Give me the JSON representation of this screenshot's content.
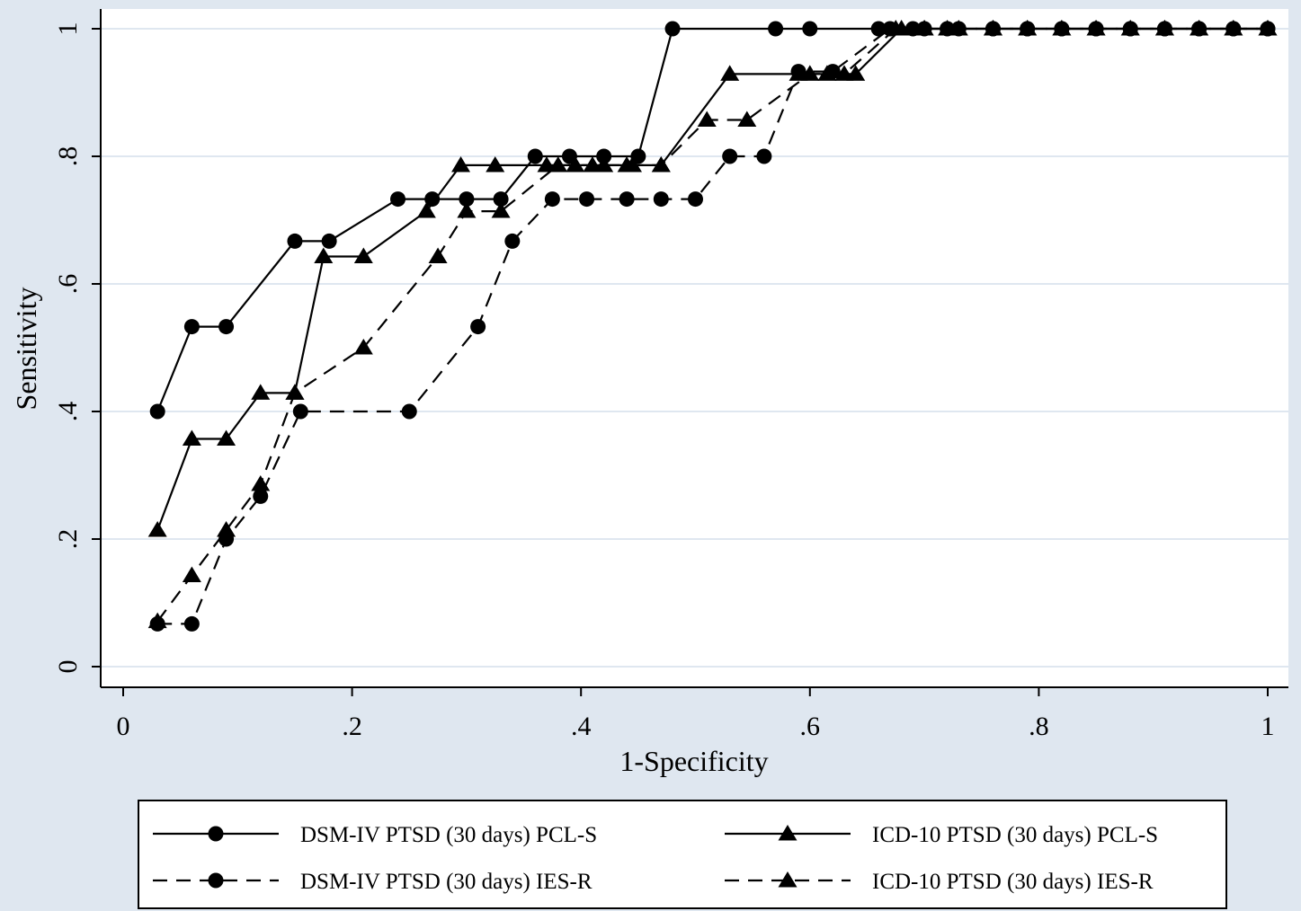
{
  "chart_data": {
    "type": "line",
    "title": "",
    "xlabel": "1-Specificity",
    "ylabel": "Sensitivity",
    "xlim": [
      0,
      1
    ],
    "ylim": [
      0,
      1
    ],
    "x_ticks": [
      {
        "value": 0,
        "label": "0"
      },
      {
        "value": 0.2,
        "label": ".2"
      },
      {
        "value": 0.4,
        "label": ".4"
      },
      {
        "value": 0.6,
        "label": ".6"
      },
      {
        "value": 0.8,
        "label": ".8"
      },
      {
        "value": 1,
        "label": "1"
      }
    ],
    "y_ticks": [
      {
        "value": 0,
        "label": "0"
      },
      {
        "value": 0.2,
        "label": ".2"
      },
      {
        "value": 0.4,
        "label": ".4"
      },
      {
        "value": 0.6,
        "label": ".6"
      },
      {
        "value": 0.8,
        "label": ".8"
      },
      {
        "value": 1,
        "label": "1"
      }
    ],
    "grid": "horizontal",
    "legend_position": "bottom",
    "colors": {
      "plot_background": "#ffffff",
      "outer_background": "#dfe7f0",
      "gridline": "#dfe7f0",
      "line": "#000000"
    },
    "series": [
      {
        "name": "DSM-IV PTSD (30 days) PCL-S",
        "marker": "circle",
        "dash": "solid",
        "points": [
          [
            0.03,
            0.4
          ],
          [
            0.06,
            0.533
          ],
          [
            0.09,
            0.533
          ],
          [
            0.15,
            0.667
          ],
          [
            0.18,
            0.667
          ],
          [
            0.24,
            0.733
          ],
          [
            0.27,
            0.733
          ],
          [
            0.3,
            0.733
          ],
          [
            0.33,
            0.733
          ],
          [
            0.36,
            0.8
          ],
          [
            0.39,
            0.8
          ],
          [
            0.42,
            0.8
          ],
          [
            0.45,
            0.8
          ],
          [
            0.48,
            1.0
          ],
          [
            0.57,
            1.0
          ],
          [
            0.6,
            1.0
          ],
          [
            0.66,
            1.0
          ],
          [
            0.69,
            1.0
          ],
          [
            0.72,
            1.0
          ],
          [
            0.76,
            1.0
          ],
          [
            0.79,
            1.0
          ],
          [
            0.82,
            1.0
          ],
          [
            0.85,
            1.0
          ],
          [
            0.88,
            1.0
          ],
          [
            0.91,
            1.0
          ],
          [
            0.94,
            1.0
          ],
          [
            0.97,
            1.0
          ],
          [
            1.0,
            1.0
          ]
        ]
      },
      {
        "name": "ICD-10 PTSD (30 days) PCL-S",
        "marker": "triangle",
        "dash": "solid",
        "points": [
          [
            0.03,
            0.214
          ],
          [
            0.06,
            0.357
          ],
          [
            0.09,
            0.357
          ],
          [
            0.12,
            0.429
          ],
          [
            0.15,
            0.429
          ],
          [
            0.175,
            0.643
          ],
          [
            0.21,
            0.643
          ],
          [
            0.265,
            0.714
          ],
          [
            0.295,
            0.786
          ],
          [
            0.325,
            0.786
          ],
          [
            0.37,
            0.786
          ],
          [
            0.395,
            0.786
          ],
          [
            0.42,
            0.786
          ],
          [
            0.445,
            0.786
          ],
          [
            0.47,
            0.786
          ],
          [
            0.53,
            0.929
          ],
          [
            0.59,
            0.929
          ],
          [
            0.615,
            0.929
          ],
          [
            0.64,
            0.929
          ],
          [
            0.68,
            1.0
          ],
          [
            0.7,
            1.0
          ],
          [
            0.73,
            1.0
          ],
          [
            0.76,
            1.0
          ],
          [
            0.79,
            1.0
          ],
          [
            0.82,
            1.0
          ],
          [
            0.85,
            1.0
          ],
          [
            0.88,
            1.0
          ],
          [
            0.91,
            1.0
          ],
          [
            0.94,
            1.0
          ],
          [
            0.97,
            1.0
          ],
          [
            1.0,
            1.0
          ]
        ]
      },
      {
        "name": "DSM-IV PTSD (30 days) IES-R",
        "marker": "circle",
        "dash": "dashed",
        "points": [
          [
            0.03,
            0.067
          ],
          [
            0.06,
            0.067
          ],
          [
            0.09,
            0.2
          ],
          [
            0.12,
            0.267
          ],
          [
            0.155,
            0.4
          ],
          [
            0.25,
            0.4
          ],
          [
            0.31,
            0.533
          ],
          [
            0.34,
            0.667
          ],
          [
            0.375,
            0.733
          ],
          [
            0.405,
            0.733
          ],
          [
            0.44,
            0.733
          ],
          [
            0.47,
            0.733
          ],
          [
            0.5,
            0.733
          ],
          [
            0.53,
            0.8
          ],
          [
            0.56,
            0.8
          ],
          [
            0.59,
            0.933
          ],
          [
            0.62,
            0.933
          ],
          [
            0.67,
            1.0
          ],
          [
            0.7,
            1.0
          ],
          [
            0.73,
            1.0
          ],
          [
            0.76,
            1.0
          ],
          [
            0.79,
            1.0
          ],
          [
            0.82,
            1.0
          ],
          [
            0.85,
            1.0
          ],
          [
            0.88,
            1.0
          ],
          [
            0.91,
            1.0
          ],
          [
            0.94,
            1.0
          ],
          [
            0.97,
            1.0
          ],
          [
            1.0,
            1.0
          ]
        ]
      },
      {
        "name": "ICD-10 PTSD (30 days) IES-R",
        "marker": "triangle",
        "dash": "dashed",
        "points": [
          [
            0.03,
            0.071
          ],
          [
            0.06,
            0.143
          ],
          [
            0.09,
            0.214
          ],
          [
            0.12,
            0.286
          ],
          [
            0.15,
            0.429
          ],
          [
            0.21,
            0.5
          ],
          [
            0.275,
            0.643
          ],
          [
            0.3,
            0.714
          ],
          [
            0.33,
            0.714
          ],
          [
            0.38,
            0.786
          ],
          [
            0.41,
            0.786
          ],
          [
            0.44,
            0.786
          ],
          [
            0.47,
            0.786
          ],
          [
            0.51,
            0.857
          ],
          [
            0.545,
            0.857
          ],
          [
            0.6,
            0.929
          ],
          [
            0.63,
            0.929
          ],
          [
            0.675,
            1.0
          ],
          [
            0.7,
            1.0
          ],
          [
            0.72,
            1.0
          ],
          [
            0.76,
            1.0
          ],
          [
            0.79,
            1.0
          ],
          [
            0.82,
            1.0
          ],
          [
            0.85,
            1.0
          ],
          [
            0.88,
            1.0
          ],
          [
            0.91,
            1.0
          ],
          [
            0.94,
            1.0
          ],
          [
            0.97,
            1.0
          ],
          [
            1.0,
            1.0
          ]
        ]
      }
    ]
  }
}
